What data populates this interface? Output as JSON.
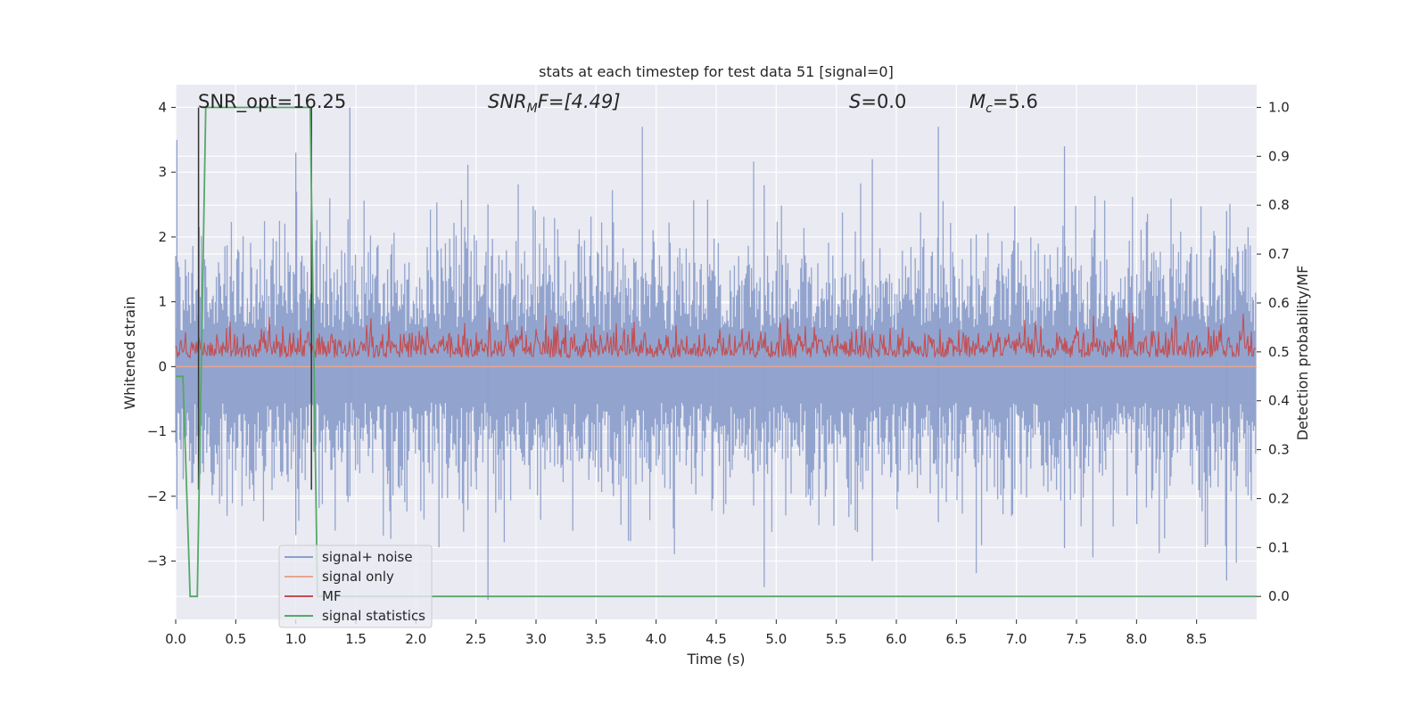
{
  "chart_data": {
    "type": "line",
    "title": "stats at each timestep for test data 51 [signal=0]",
    "xlabel": "Time (s)",
    "ylabel": "Whitened strain",
    "y2label": "Detection probability/MF",
    "xlim": [
      0,
      9.0
    ],
    "ylim": [
      -3.9,
      4.35
    ],
    "y2lim": [
      -0.047,
      1.0464
    ],
    "xticks": [
      0.0,
      0.5,
      1.0,
      1.5,
      2.0,
      2.5,
      3.0,
      3.5,
      4.0,
      4.5,
      5.0,
      5.5,
      6.0,
      6.5,
      7.0,
      7.5,
      8.0,
      8.5
    ],
    "xtick_labels": [
      "0.0",
      "0.5",
      "1.0",
      "1.5",
      "2.0",
      "2.5",
      "3.0",
      "3.5",
      "4.0",
      "4.5",
      "5.0",
      "5.5",
      "6.0",
      "6.5",
      "7.0",
      "7.5",
      "8.0",
      "8.5"
    ],
    "yticks": [
      4,
      3,
      2,
      1,
      0,
      -1,
      -2,
      -3
    ],
    "ytick_labels": [
      "4",
      "3",
      "2",
      "1",
      "0",
      "−1",
      "−2",
      "−3"
    ],
    "y2ticks": [
      1.0,
      0.9,
      0.8,
      0.7,
      0.6,
      0.5,
      0.4,
      0.3,
      0.2,
      0.1,
      0.0
    ],
    "y2tick_labels": [
      "1.0",
      "0.9",
      "0.8",
      "0.7",
      "0.6",
      "0.5",
      "0.4",
      "0.3",
      "0.2",
      "0.1",
      "0.0"
    ],
    "grid": true,
    "legend_position": "lower-left",
    "annotations": {
      "snr_opt": "SNR_opt=16.25",
      "snr_mf_var": "SNR",
      "snr_mf_sub": "M",
      "snr_mf_rest": "F=[4.49]",
      "s_var": "S",
      "s_rest": "=0.0",
      "mc_var": "M",
      "mc_sub": "c",
      "mc_rest": "=5.6"
    },
    "series": [
      {
        "name": "signal+ noise",
        "axis": "left",
        "color": "#8da0cb",
        "description_ranges": {
          "typical_min": -2.2,
          "typical_max": 2.4,
          "max": 4.0,
          "min": -3.6
        }
      },
      {
        "name": "signal only",
        "axis": "left",
        "color": "#e8a58c",
        "values_constant": 0.0
      },
      {
        "name": "MF",
        "axis": "right",
        "color": "#c44e52",
        "baseline": 0.5,
        "typical_min": 0.455,
        "typical_max": 0.56
      },
      {
        "name": "signal statistics",
        "axis": "right",
        "color": "#55a868",
        "x": [
          0.0,
          0.06,
          0.12,
          0.18,
          0.25,
          0.3,
          1.12,
          1.18,
          1.3,
          2.0,
          4.0,
          6.0,
          8.0,
          9.0
        ],
        "values": [
          0.45,
          0.45,
          0.0,
          0.0,
          1.0,
          1.0,
          1.0,
          0.0,
          0.0,
          0.0,
          0.0,
          0.0,
          0.0,
          0.0
        ]
      }
    ],
    "vertical_markers": {
      "color": "#333333",
      "x": [
        0.19,
        1.13
      ]
    }
  }
}
